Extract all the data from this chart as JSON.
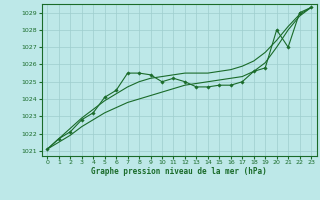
{
  "xlabel": "Graphe pression niveau de la mer (hPa)",
  "bg_color": "#bde8e8",
  "grid_color": "#9ecece",
  "line_color": "#1a6b2a",
  "marker_color": "#1a6b2a",
  "xlim": [
    -0.5,
    23.5
  ],
  "ylim": [
    1020.7,
    1029.5
  ],
  "xticks": [
    0,
    1,
    2,
    3,
    4,
    5,
    6,
    7,
    8,
    9,
    10,
    11,
    12,
    13,
    14,
    15,
    16,
    17,
    18,
    19,
    20,
    21,
    22,
    23
  ],
  "yticks": [
    1021,
    1022,
    1023,
    1024,
    1025,
    1026,
    1027,
    1028,
    1029
  ],
  "line_wavy": {
    "x": [
      0,
      1,
      2,
      3,
      4,
      5,
      6,
      7,
      8,
      9,
      10,
      11,
      12,
      13,
      14,
      15,
      16,
      17,
      18,
      19,
      20,
      21,
      22,
      23
    ],
    "y": [
      1021.1,
      1021.7,
      1022.1,
      1022.8,
      1023.2,
      1024.1,
      1024.5,
      1025.5,
      1025.5,
      1025.4,
      1025.0,
      1025.2,
      1025.0,
      1024.7,
      1024.7,
      1024.8,
      1024.8,
      1025.0,
      1025.6,
      1025.8,
      1028.0,
      1027.0,
      1029.0,
      1029.3
    ]
  },
  "line_upper": {
    "x": [
      0,
      1,
      2,
      3,
      4,
      5,
      6,
      7,
      8,
      9,
      10,
      11,
      12,
      13,
      14,
      15,
      16,
      17,
      18,
      19,
      20,
      21,
      22,
      23
    ],
    "y": [
      1021.1,
      1021.7,
      1022.3,
      1022.9,
      1023.4,
      1023.9,
      1024.3,
      1024.7,
      1025.0,
      1025.2,
      1025.3,
      1025.4,
      1025.5,
      1025.5,
      1025.5,
      1025.6,
      1025.7,
      1025.9,
      1026.2,
      1026.7,
      1027.4,
      1028.2,
      1028.9,
      1029.3
    ]
  },
  "line_lower": {
    "x": [
      0,
      1,
      2,
      3,
      4,
      5,
      6,
      7,
      8,
      9,
      10,
      11,
      12,
      13,
      14,
      15,
      16,
      17,
      18,
      19,
      20,
      21,
      22,
      23
    ],
    "y": [
      1021.1,
      1021.5,
      1021.9,
      1022.4,
      1022.8,
      1023.2,
      1023.5,
      1023.8,
      1024.0,
      1024.2,
      1024.4,
      1024.6,
      1024.8,
      1024.9,
      1025.0,
      1025.1,
      1025.2,
      1025.3,
      1025.6,
      1026.1,
      1027.0,
      1028.0,
      1028.8,
      1029.3
    ]
  }
}
